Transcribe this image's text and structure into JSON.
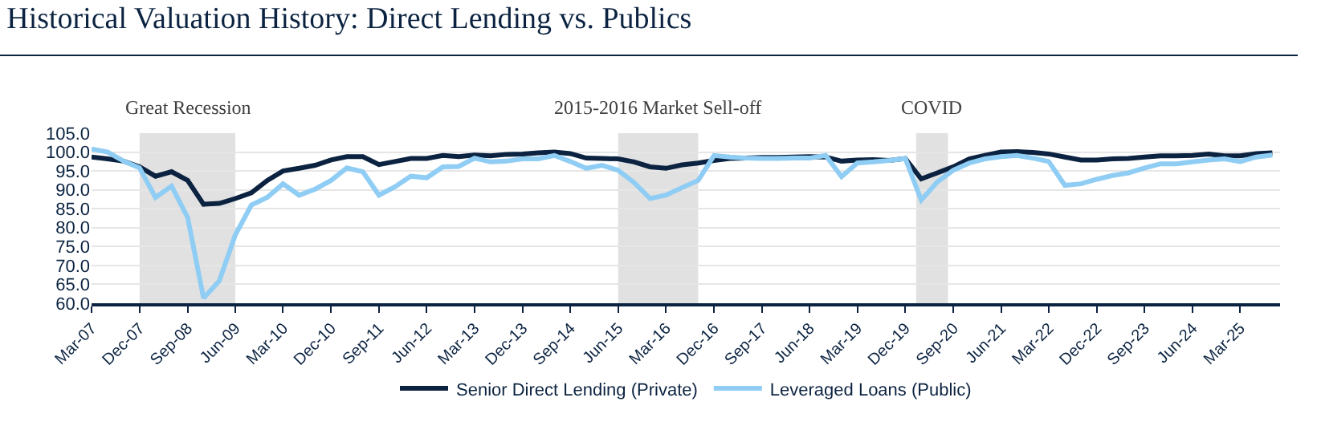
{
  "chart_data": {
    "type": "line",
    "title": "Historical Valuation History: Direct Lending vs. Publics",
    "x": [
      "2007-03",
      "2007-06",
      "2007-09",
      "2007-12",
      "2008-03",
      "2008-06",
      "2008-09",
      "2008-12",
      "2009-03",
      "2009-06",
      "2009-09",
      "2009-12",
      "2010-03",
      "2010-06",
      "2010-09",
      "2010-12",
      "2011-03",
      "2011-06",
      "2011-09",
      "2011-12",
      "2012-03",
      "2012-06",
      "2012-09",
      "2012-12",
      "2013-03",
      "2013-06",
      "2013-09",
      "2013-12",
      "2014-03",
      "2014-06",
      "2014-09",
      "2014-12",
      "2015-03",
      "2015-06",
      "2015-09",
      "2015-12",
      "2016-03",
      "2016-06",
      "2016-09",
      "2016-12",
      "2017-03",
      "2017-06",
      "2017-09",
      "2017-12",
      "2018-03",
      "2018-06",
      "2018-09",
      "2018-12",
      "2019-03",
      "2019-06",
      "2019-09",
      "2019-12",
      "2020-03",
      "2020-06",
      "2020-09",
      "2020-12",
      "2021-03",
      "2021-06",
      "2021-09",
      "2021-12",
      "2022-03",
      "2022-06",
      "2022-09",
      "2022-12",
      "2023-03",
      "2023-06",
      "2023-09",
      "2023-12",
      "2024-03",
      "2024-06",
      "2024-09",
      "2024-12",
      "2025-03",
      "2025-06",
      "2025-09"
    ],
    "series": [
      {
        "name": "Senior Direct Lending (Private)",
        "color": "#0b2341",
        "values": [
          98.7,
          98.2,
          97.6,
          96.1,
          93.6,
          94.8,
          92.5,
          86.2,
          86.4,
          87.7,
          89.2,
          92.5,
          95.0,
          95.7,
          96.5,
          97.9,
          98.8,
          98.8,
          96.7,
          97.5,
          98.3,
          98.3,
          99.1,
          98.8,
          99.2,
          99.0,
          99.4,
          99.5,
          99.8,
          100.0,
          99.6,
          98.4,
          98.3,
          98.2,
          97.4,
          96.1,
          95.7,
          96.6,
          97.1,
          97.8,
          98.3,
          98.4,
          98.6,
          98.6,
          98.7,
          98.8,
          98.7,
          97.6,
          97.9,
          98.0,
          97.8,
          98.3,
          92.9,
          94.5,
          96.1,
          98.2,
          99.1,
          100.0,
          100.1,
          99.9,
          99.5,
          98.7,
          97.9,
          97.9,
          98.2,
          98.3,
          98.7,
          99.0,
          99.0,
          99.1,
          99.5,
          99.0,
          99.0,
          99.6,
          99.8
        ]
      },
      {
        "name": "Leveraged Loans (Public)",
        "color": "#8fcdf4",
        "values": [
          100.8,
          100.0,
          97.6,
          95.8,
          88.0,
          91.0,
          82.7,
          61.4,
          65.9,
          78.1,
          86.0,
          88.0,
          91.6,
          88.6,
          90.2,
          92.5,
          95.8,
          94.8,
          88.6,
          90.8,
          93.6,
          93.2,
          96.1,
          96.2,
          98.4,
          97.4,
          97.6,
          98.2,
          98.2,
          99.1,
          97.5,
          95.7,
          96.5,
          95.2,
          91.9,
          87.7,
          88.6,
          90.6,
          92.5,
          99.1,
          98.7,
          98.4,
          98.3,
          98.3,
          98.4,
          98.4,
          99.1,
          93.5,
          97.1,
          97.4,
          97.8,
          98.3,
          87.3,
          92.1,
          95.2,
          97.1,
          98.2,
          98.8,
          99.1,
          98.4,
          97.5,
          91.2,
          91.6,
          92.8,
          93.8,
          94.5,
          95.8,
          96.9,
          96.9,
          97.4,
          97.9,
          98.2,
          97.5,
          98.7,
          99.2
        ]
      }
    ],
    "xlim": [
      "2007-03",
      "2025-10-15"
    ],
    "xticks": [
      {
        "value": "2007-03",
        "label": "Mar-07"
      },
      {
        "value": "2007-12",
        "label": "Dec-07"
      },
      {
        "value": "2008-09",
        "label": "Sep-08"
      },
      {
        "value": "2009-06",
        "label": "Jun-09"
      },
      {
        "value": "2010-03",
        "label": "Mar-10"
      },
      {
        "value": "2010-12",
        "label": "Dec-10"
      },
      {
        "value": "2011-09",
        "label": "Sep-11"
      },
      {
        "value": "2012-06",
        "label": "Jun-12"
      },
      {
        "value": "2013-03",
        "label": "Mar-13"
      },
      {
        "value": "2013-12",
        "label": "Dec-13"
      },
      {
        "value": "2014-09",
        "label": "Sep-14"
      },
      {
        "value": "2015-06",
        "label": "Jun-15"
      },
      {
        "value": "2016-03",
        "label": "Mar-16"
      },
      {
        "value": "2016-12",
        "label": "Dec-16"
      },
      {
        "value": "2017-09",
        "label": "Sep-17"
      },
      {
        "value": "2018-06",
        "label": "Jun-18"
      },
      {
        "value": "2019-03",
        "label": "Mar-19"
      },
      {
        "value": "2019-12",
        "label": "Dec-19"
      },
      {
        "value": "2020-09",
        "label": "Sep-20"
      },
      {
        "value": "2021-06",
        "label": "Jun-21"
      },
      {
        "value": "2022-03",
        "label": "Mar-22"
      },
      {
        "value": "2022-12",
        "label": "Dec-22"
      },
      {
        "value": "2023-09",
        "label": "Sep-23"
      },
      {
        "value": "2024-06",
        "label": "Jun-24"
      },
      {
        "value": "2025-03",
        "label": "Mar-25"
      }
    ],
    "ylim": [
      60,
      105
    ],
    "yticks": [
      {
        "value": 60,
        "label": "60.0"
      },
      {
        "value": 65,
        "label": "65.0"
      },
      {
        "value": 70,
        "label": "70.0"
      },
      {
        "value": 75,
        "label": "75.0"
      },
      {
        "value": 80,
        "label": "80.0"
      },
      {
        "value": 85,
        "label": "85.0"
      },
      {
        "value": 90,
        "label": "90.0"
      },
      {
        "value": 95,
        "label": "95.0"
      },
      {
        "value": 100,
        "label": "100.0"
      },
      {
        "value": 105,
        "label": "105.0"
      }
    ],
    "bands": [
      {
        "axis": "x",
        "from": "2007-12",
        "to": "2009-06",
        "label": "Great Recession",
        "color": "#c8c8c8"
      },
      {
        "axis": "x",
        "from": "2015-06",
        "to": "2016-09",
        "label": "2015-2016 Market Sell-off",
        "color": "#c8c8c8"
      },
      {
        "axis": "x",
        "from": "2020-02",
        "to": "2020-08",
        "label": "COVID",
        "color": "#c8c8c8"
      }
    ],
    "grid": "y",
    "legend": "bottom",
    "marker": "none",
    "line_style": "solid"
  }
}
